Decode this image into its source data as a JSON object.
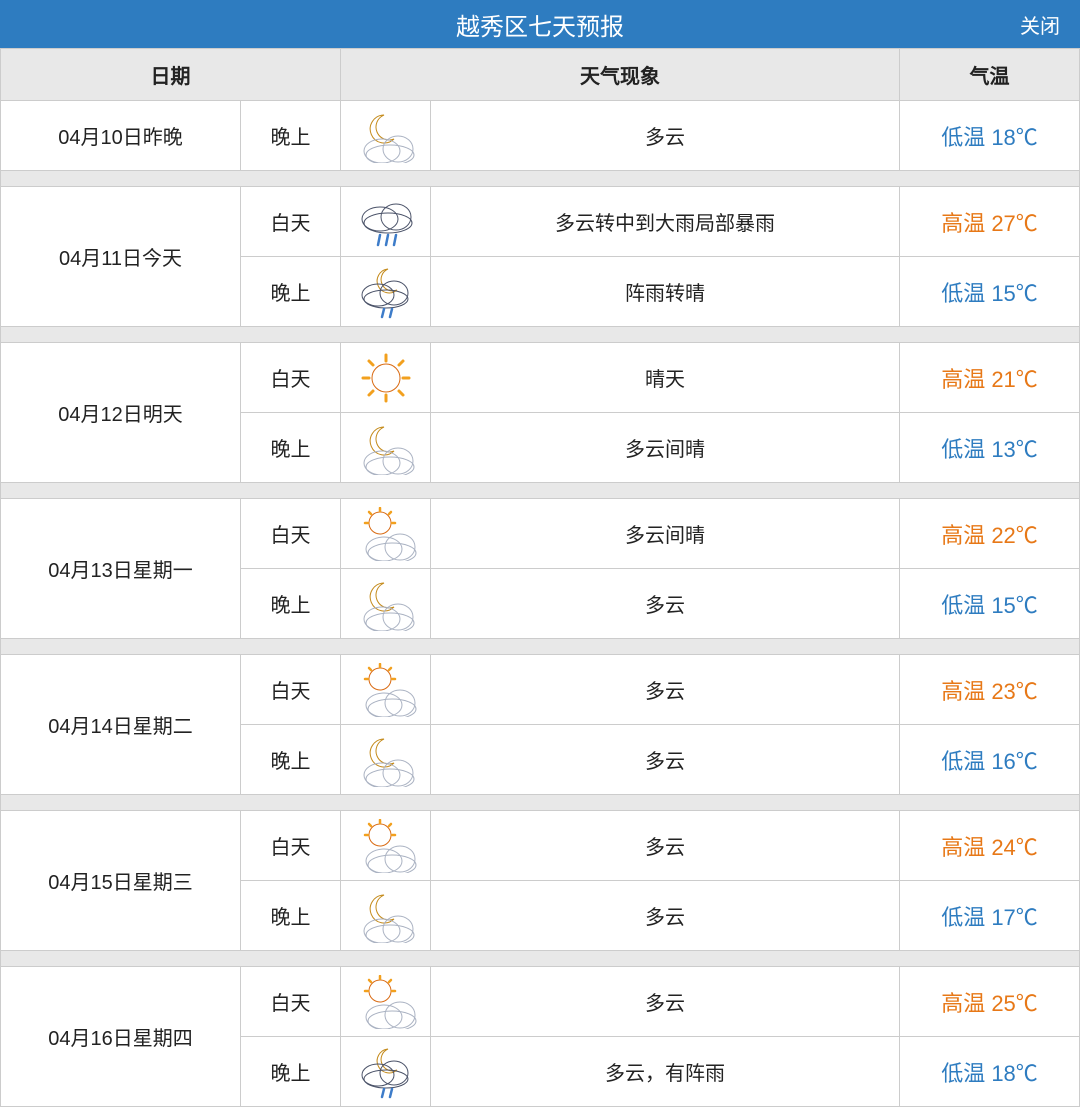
{
  "header": {
    "title": "越秀区七天预报",
    "close_label": "关闭"
  },
  "columns": {
    "date": "日期",
    "weather": "天气现象",
    "temp": "气温"
  },
  "temp_labels": {
    "high": "高温",
    "low": "低温"
  },
  "period_labels": {
    "day": "白天",
    "night": "晚上"
  },
  "colors": {
    "header_bg": "#2e7cc0",
    "th_bg": "#e8e8e8",
    "border": "#cccccc",
    "temp_high": "#e77817",
    "temp_low": "#2e7cc0",
    "text": "#222222"
  },
  "forecast": [
    {
      "date": "04月10日昨晚",
      "rows": [
        {
          "period": "晚上",
          "icon": "night-cloudy",
          "desc": "多云",
          "temp_type": "low",
          "temp": "18℃"
        }
      ]
    },
    {
      "date": "04月11日今天",
      "rows": [
        {
          "period": "白天",
          "icon": "rain",
          "desc": "多云转中到大雨局部暴雨",
          "temp_type": "high",
          "temp": "27℃"
        },
        {
          "period": "晚上",
          "icon": "night-shower",
          "desc": "阵雨转晴",
          "temp_type": "low",
          "temp": "15℃"
        }
      ]
    },
    {
      "date": "04月12日明天",
      "rows": [
        {
          "period": "白天",
          "icon": "sunny",
          "desc": "晴天",
          "temp_type": "high",
          "temp": "21℃"
        },
        {
          "period": "晚上",
          "icon": "night-cloudy",
          "desc": "多云间晴",
          "temp_type": "low",
          "temp": "13℃"
        }
      ]
    },
    {
      "date": "04月13日星期一",
      "rows": [
        {
          "period": "白天",
          "icon": "partly-cloudy",
          "desc": "多云间晴",
          "temp_type": "high",
          "temp": "22℃"
        },
        {
          "period": "晚上",
          "icon": "night-cloudy",
          "desc": "多云",
          "temp_type": "low",
          "temp": "15℃"
        }
      ]
    },
    {
      "date": "04月14日星期二",
      "rows": [
        {
          "period": "白天",
          "icon": "partly-cloudy",
          "desc": "多云",
          "temp_type": "high",
          "temp": "23℃"
        },
        {
          "period": "晚上",
          "icon": "night-cloudy",
          "desc": "多云",
          "temp_type": "low",
          "temp": "16℃"
        }
      ]
    },
    {
      "date": "04月15日星期三",
      "rows": [
        {
          "period": "白天",
          "icon": "partly-cloudy",
          "desc": "多云",
          "temp_type": "high",
          "temp": "24℃"
        },
        {
          "period": "晚上",
          "icon": "night-cloudy",
          "desc": "多云",
          "temp_type": "low",
          "temp": "17℃"
        }
      ]
    },
    {
      "date": "04月16日星期四",
      "rows": [
        {
          "period": "白天",
          "icon": "partly-cloudy",
          "desc": "多云",
          "temp_type": "high",
          "temp": "25℃"
        },
        {
          "period": "晚上",
          "icon": "night-shower",
          "desc": "多云，有阵雨",
          "temp_type": "low",
          "temp": "18℃"
        }
      ]
    }
  ]
}
